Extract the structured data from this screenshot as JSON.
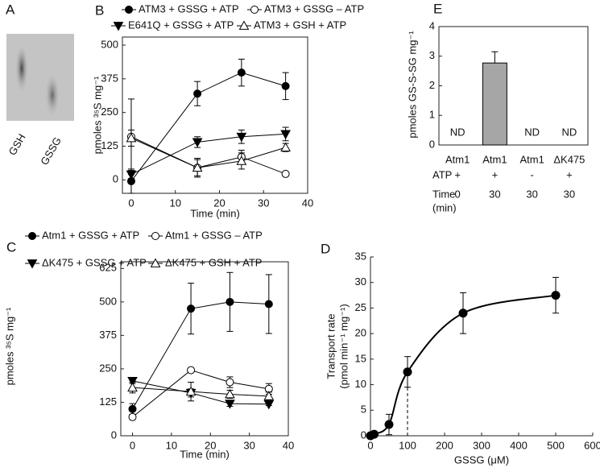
{
  "chart_data": [
    {
      "type": "image",
      "label": "A",
      "lanes": [
        "GSH",
        "GSSG"
      ]
    },
    {
      "type": "line",
      "label": "B",
      "x": [
        0,
        15,
        25,
        35
      ],
      "xlim": [
        -2,
        40
      ],
      "xticks": [
        0,
        10,
        20,
        30,
        40
      ],
      "ylim": [
        -50,
        530
      ],
      "yticks": [
        0,
        125,
        250,
        375,
        500
      ],
      "xlabel": "Time (min)",
      "ylabel": "pmoles ³⁵S mg⁻¹",
      "series": [
        {
          "name": "ATM3 + GSSG + ATP",
          "color": "#000000",
          "marker": "circle",
          "values": [
            -5,
            320,
            398,
            348
          ],
          "errors": [
            45,
            45,
            50,
            50
          ]
        },
        {
          "name": "ATM3 + GSSG – ATP",
          "color": "#000000",
          "marker": "open-circle",
          "values": [
            160,
            45,
            85,
            22
          ],
          "errors": [
            140,
            30,
            25,
            0
          ]
        },
        {
          "name": "E641Q + GSSG + ATP",
          "color": "#000000",
          "marker": "down-triangle",
          "values": [
            20,
            140,
            160,
            170
          ],
          "errors": [
            15,
            20,
            25,
            25
          ]
        },
        {
          "name": "ATM3 + GSH + ATP",
          "color": "#000000",
          "marker": "open-triangle",
          "values": [
            155,
            45,
            70,
            120
          ],
          "errors": [
            30,
            35,
            30,
            15
          ]
        }
      ]
    },
    {
      "type": "line",
      "label": "C",
      "x": [
        0,
        15,
        25,
        35
      ],
      "xlim": [
        -3,
        40
      ],
      "xticks": [
        0,
        10,
        20,
        30,
        40
      ],
      "ylim": [
        0,
        650
      ],
      "yticks": [
        0,
        125,
        250,
        375,
        500,
        625
      ],
      "xlabel": "Time (min)",
      "ylabel": "pmoles ³⁵S mg⁻¹",
      "series": [
        {
          "name": "Atm1 + GSSG + ATP",
          "color": "#000000",
          "marker": "circle",
          "values": [
            100,
            475,
            500,
            492
          ],
          "errors": [
            20,
            95,
            110,
            110
          ]
        },
        {
          "name": "Atm1 + GSSG – ATP",
          "color": "#000000",
          "marker": "open-circle",
          "values": [
            70,
            245,
            200,
            175
          ],
          "errors": [
            10,
            5,
            20,
            20
          ]
        },
        {
          "name": "ΔK475 + GSSG + ATP",
          "color": "#000000",
          "marker": "down-triangle",
          "values": [
            205,
            160,
            120,
            118
          ],
          "errors": [
            10,
            15,
            10,
            5
          ]
        },
        {
          "name": "ΔK475 + GSH + ATP",
          "color": "#000000",
          "marker": "open-triangle",
          "values": [
            180,
            165,
            155,
            148
          ],
          "errors": [
            20,
            35,
            15,
            15
          ]
        }
      ]
    },
    {
      "type": "scatter",
      "label": "D",
      "x": [
        0,
        10,
        50,
        100,
        250,
        500
      ],
      "values": [
        0,
        0.3,
        2.2,
        12.5,
        24,
        27.5
      ],
      "errors": [
        0,
        0.3,
        2,
        3,
        4,
        3.5
      ],
      "xlim": [
        0,
        600
      ],
      "xticks": [
        0,
        100,
        200,
        300,
        400,
        500,
        600
      ],
      "ylim": [
        0,
        35
      ],
      "yticks": [
        0,
        5,
        10,
        15,
        20,
        25,
        30,
        35
      ],
      "xlabel": "GSSG (μM)",
      "ylabel": [
        "Transport rate",
        "(pmol min⁻¹ mg⁻¹)"
      ],
      "color": "#000000"
    },
    {
      "type": "bar",
      "label": "E",
      "categories": [
        "Atm1",
        "Atm1",
        "Atm1",
        "ΔK475"
      ],
      "values": [
        null,
        2.77,
        null,
        null
      ],
      "value_labels": [
        "ND",
        null,
        "ND",
        "ND"
      ],
      "errors": [
        null,
        0.38,
        null,
        null
      ],
      "color": "#a6a6a6",
      "ylim": [
        0,
        4
      ],
      "yticks": [
        0,
        1,
        2,
        3,
        4
      ],
      "ylabel": "pmoles GS-S-SG mg⁻¹",
      "rows": [
        {
          "label": [
            "ATP"
          ],
          "cells": [
            "+",
            "+",
            "-",
            "+"
          ]
        },
        {
          "label": [
            "Time",
            "(min)"
          ],
          "cells": [
            "0",
            "30",
            "30",
            "30"
          ]
        }
      ]
    }
  ]
}
